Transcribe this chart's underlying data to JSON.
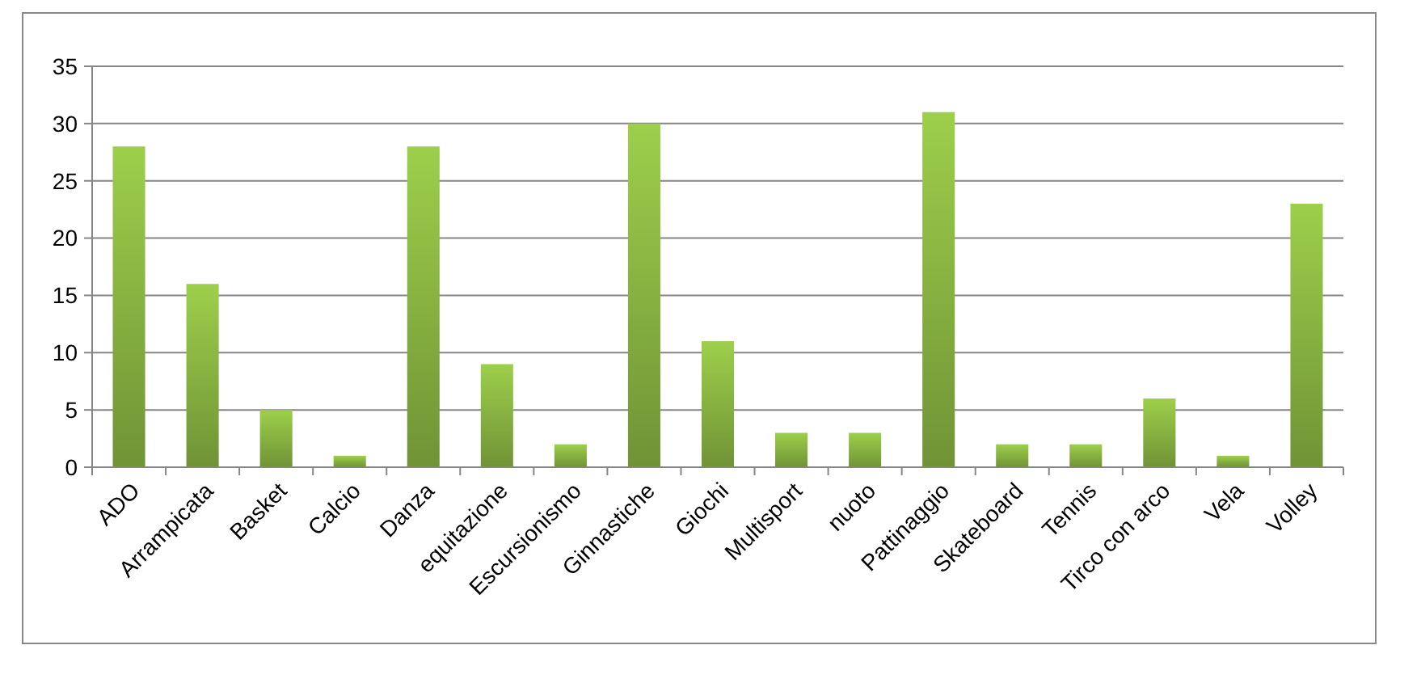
{
  "chart_data": {
    "type": "bar",
    "categories": [
      "ADO",
      "Arrampicata",
      "Basket",
      "Calcio",
      "Danza",
      "equitazione",
      "Escursionismo",
      "Ginnastiche",
      "Giochi",
      "Multisport",
      "nuoto",
      "Pattinaggio",
      "Skateboard",
      "Tennis",
      "Tirco con arco",
      "Vela",
      "Volley"
    ],
    "values": [
      28,
      16,
      5,
      1,
      28,
      9,
      2,
      30,
      11,
      3,
      3,
      31,
      2,
      2,
      6,
      1,
      23
    ],
    "color": "#86b040",
    "ylim": [
      0,
      35
    ],
    "yticks": [
      0,
      5,
      10,
      15,
      20,
      25,
      30,
      35
    ],
    "grid": "y"
  }
}
